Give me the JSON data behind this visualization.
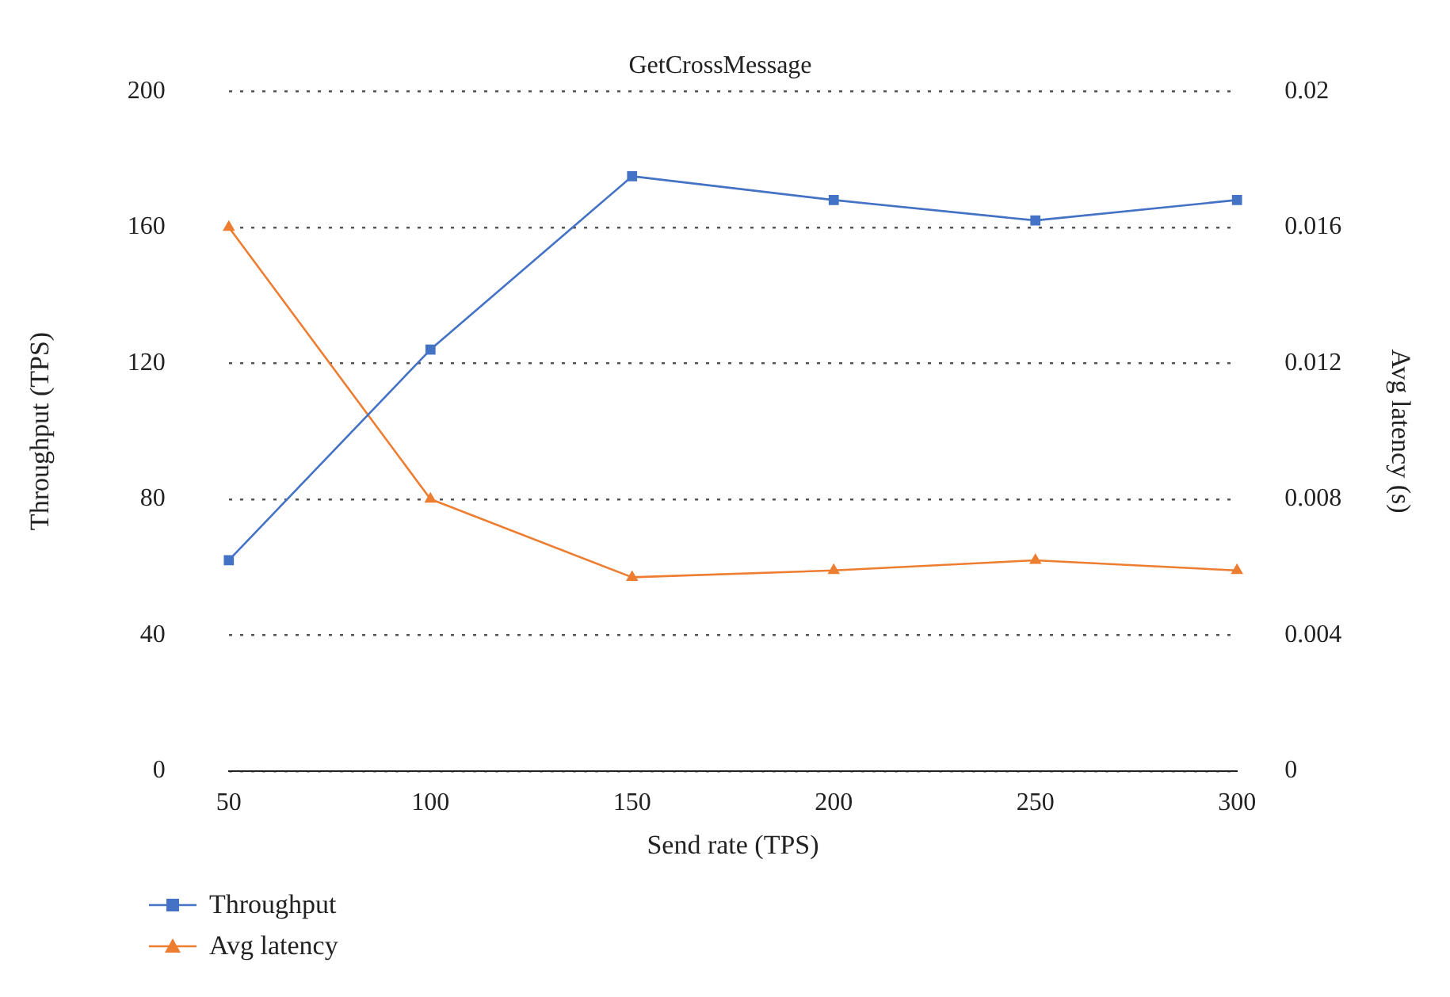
{
  "chart_data": {
    "type": "line",
    "title": "GetCrossMessage",
    "xlabel": "Send rate (TPS)",
    "ylabel": "Throughput (TPS)",
    "y2label": "Avg latency (s)",
    "categories": [
      "50",
      "100",
      "150",
      "200",
      "250",
      "300"
    ],
    "series": [
      {
        "name": "Throughput",
        "color": "#4472c4",
        "marker": "square",
        "values": [
          62,
          124,
          175,
          168,
          162,
          168
        ]
      },
      {
        "name": "Avg latency",
        "color": "#ed7d31",
        "marker": "triangle",
        "axis": "y2",
        "values": [
          0.016,
          0.008,
          0.0057,
          0.0059,
          0.0062,
          0.0059
        ]
      }
    ],
    "ylim": [
      0,
      200
    ],
    "yticks": [
      0,
      40,
      80,
      120,
      160,
      200
    ],
    "y2lim": [
      0,
      0.02
    ],
    "y2ticks": [
      0,
      0.004,
      0.008,
      0.012,
      0.016,
      0.02
    ],
    "grid": "y",
    "legend": "bottom left",
    "line_style": "solid"
  }
}
